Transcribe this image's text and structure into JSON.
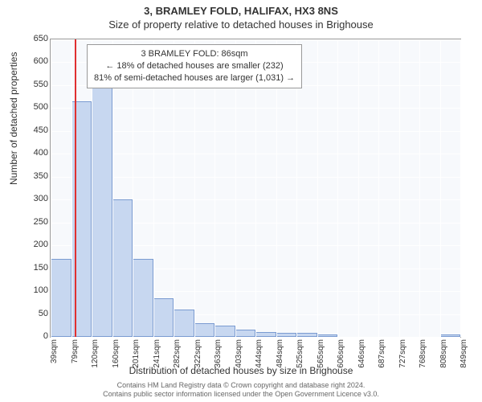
{
  "header": {
    "title": "3, BRAMLEY FOLD, HALIFAX, HX3 8NS",
    "subtitle": "Size of property relative to detached houses in Brighouse"
  },
  "axes": {
    "ylabel": "Number of detached properties",
    "xlabel": "Distribution of detached houses by size in Brighouse",
    "ylim": [
      0,
      650
    ],
    "ytick_step": 50,
    "y_ticks": [
      0,
      50,
      100,
      150,
      200,
      250,
      300,
      350,
      400,
      450,
      500,
      550,
      600,
      650
    ],
    "x_ticks": [
      "39sqm",
      "79sqm",
      "120sqm",
      "160sqm",
      "201sqm",
      "241sqm",
      "282sqm",
      "322sqm",
      "363sqm",
      "403sqm",
      "444sqm",
      "484sqm",
      "525sqm",
      "565sqm",
      "606sqm",
      "646sqm",
      "687sqm",
      "727sqm",
      "768sqm",
      "808sqm",
      "849sqm"
    ],
    "label_fontsize": 12,
    "tick_fontsize": 11
  },
  "chart": {
    "type": "histogram",
    "background_color": "#f7f9fc",
    "grid_color": "#ffffff",
    "bar_fill": "#c7d7f0",
    "bar_border": "#7a9bd1",
    "marker_color": "#e03030",
    "marker_x": 86,
    "x_min": 39,
    "x_max": 849,
    "values": [
      170,
      515,
      620,
      300,
      170,
      85,
      60,
      30,
      25,
      15,
      10,
      8,
      8,
      6,
      0,
      0,
      0,
      0,
      0,
      6
    ]
  },
  "info_box": {
    "line1": "3 BRAMLEY FOLD: 86sqm",
    "line2": "← 18% of detached houses are smaller (232)",
    "line3": "81% of semi-detached houses are larger (1,031) →"
  },
  "attribution": {
    "line1": "Contains HM Land Registry data © Crown copyright and database right 2024.",
    "line2": "Contains public sector information licensed under the Open Government Licence v3.0."
  },
  "colors": {
    "text": "#333333",
    "attribution_text": "#666666",
    "border": "#999999"
  }
}
